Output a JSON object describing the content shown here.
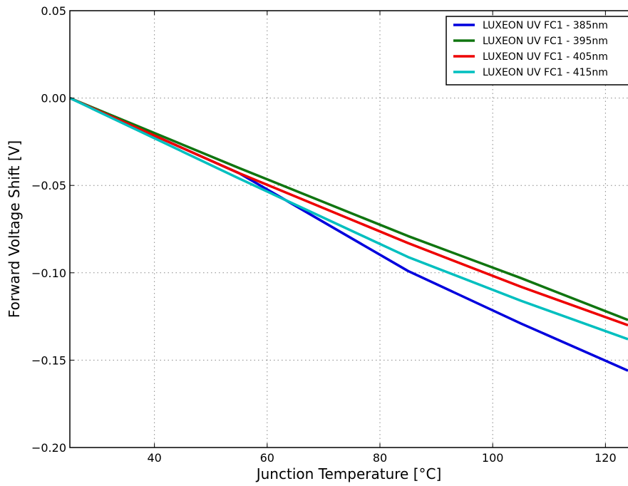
{
  "chart_data": {
    "type": "line",
    "title": "",
    "xlabel": "Junction Temperature [°C]",
    "ylabel": "Forward Voltage Shift [V]",
    "xlim": [
      25,
      124
    ],
    "ylim": [
      -0.2,
      0.05
    ],
    "grid": true,
    "legend_position": "top-right",
    "xticks": [
      40,
      60,
      80,
      100,
      120
    ],
    "xtick_labels": [
      "40",
      "60",
      "80",
      "100",
      "120"
    ],
    "yticks": [
      0.05,
      0.0,
      -0.05,
      -0.1,
      -0.15,
      -0.2
    ],
    "ytick_labels": [
      "0.05",
      "0.00",
      "−0.05",
      "−0.10",
      "−0.15",
      "−0.20"
    ],
    "series": [
      {
        "name": "LUXEON UV FC1 - 385nm",
        "color": "#0000dd",
        "x": [
          25,
          55,
          85,
          105,
          124
        ],
        "y": [
          0.0,
          -0.043,
          -0.099,
          -0.129,
          -0.156
        ]
      },
      {
        "name": "LUXEON UV FC1 - 395nm",
        "color": "#107510",
        "x": [
          25,
          55,
          85,
          105,
          124
        ],
        "y": [
          0.0,
          -0.04,
          -0.079,
          -0.103,
          -0.127
        ]
      },
      {
        "name": "LUXEON UV FC1 - 405nm",
        "color": "#ee0000",
        "x": [
          25,
          55,
          85,
          105,
          124
        ],
        "y": [
          0.0,
          -0.043,
          -0.083,
          -0.108,
          -0.13
        ]
      },
      {
        "name": "LUXEON UV FC1 - 415nm",
        "color": "#00bfbf",
        "x": [
          25,
          55,
          85,
          105,
          124
        ],
        "y": [
          0.0,
          -0.046,
          -0.091,
          -0.116,
          -0.138
        ]
      }
    ]
  }
}
